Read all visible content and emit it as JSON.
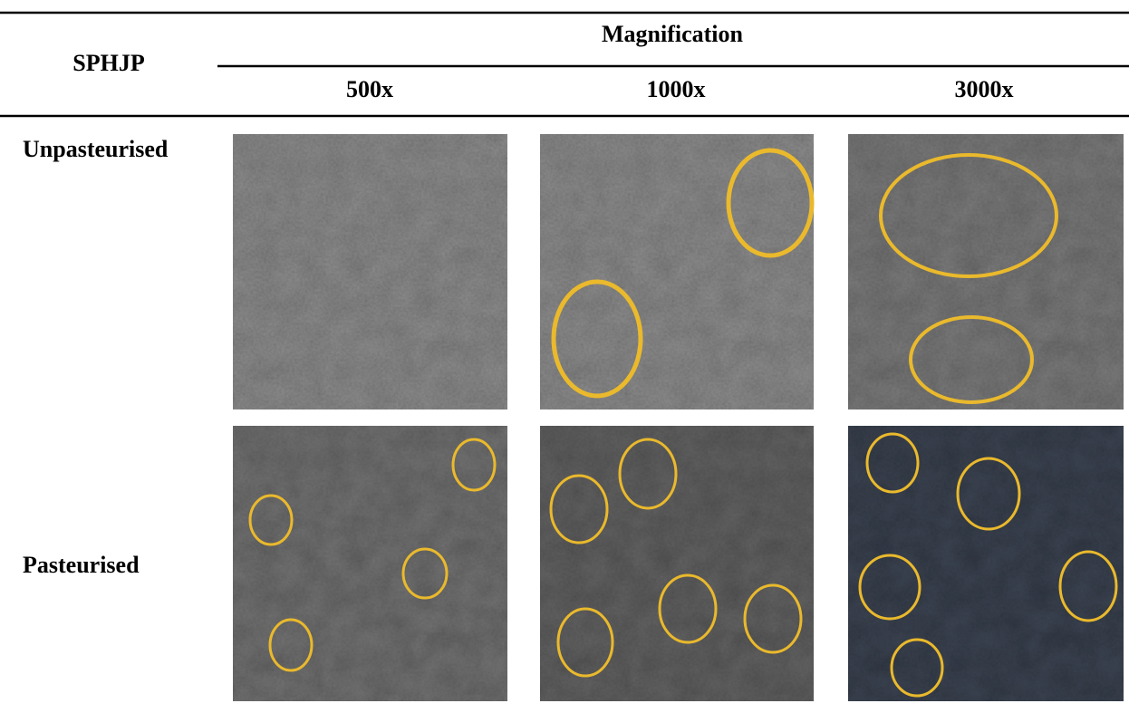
{
  "header": {
    "row_label": "SPHJP",
    "group": "Magnification",
    "columns": [
      "500x",
      "1000x",
      "3000x"
    ]
  },
  "rows": [
    {
      "label": "Unpasteurised"
    },
    {
      "label": "Pasteurised"
    }
  ]
}
